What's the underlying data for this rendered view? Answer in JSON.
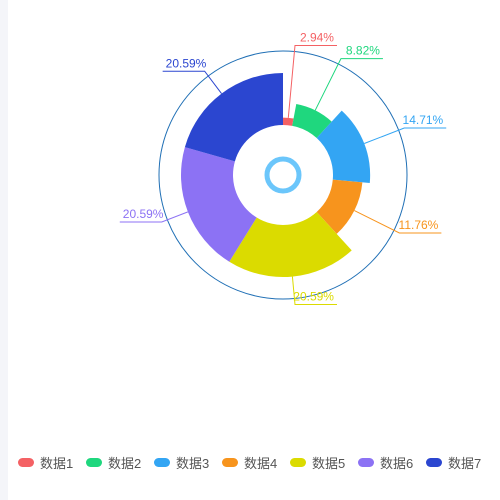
{
  "chart_data": {
    "type": "pie",
    "variant": "rose-ring",
    "categories": [
      "数据1",
      "数据2",
      "数据3",
      "数据4",
      "数据5",
      "数据6",
      "数据7"
    ],
    "values": [
      1,
      3,
      5,
      4,
      7,
      7,
      7
    ],
    "percent_labels": [
      "2.94%",
      "8.82%",
      "14.71%",
      "11.76%",
      "20.59%",
      "20.59%",
      "20.59%"
    ],
    "colors": [
      "#f46164",
      "#1fd77e",
      "#33a5f3",
      "#f7941d",
      "#dbdb00",
      "#8c72f4",
      "#2b46d0"
    ],
    "legend_position": "bottom",
    "title": ""
  }
}
